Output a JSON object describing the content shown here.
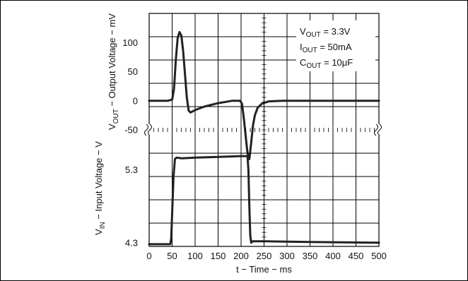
{
  "chart_data": {
    "type": "line",
    "xlabel": "t − Time − ms",
    "x_ticks": [
      0,
      50,
      100,
      150,
      200,
      250,
      300,
      350,
      400,
      450,
      500
    ],
    "xlim": [
      0,
      500
    ],
    "grid": true,
    "panels": [
      {
        "id": "vout",
        "ylabel_main": "V",
        "ylabel_sub": "OUT",
        "ylabel_rest": " − Output Voltage − mV",
        "y_ticks": [
          100,
          50,
          0,
          -50
        ],
        "ylim": [
          -50,
          150
        ],
        "series": {
          "x": [
            0,
            40,
            50,
            54,
            58,
            62,
            66,
            70,
            74,
            78,
            82,
            86,
            90,
            100,
            120,
            150,
            180,
            198,
            202,
            206,
            210,
            214,
            218,
            222,
            226,
            230,
            236,
            245,
            260,
            290,
            350,
            420,
            500
          ],
          "y": [
            0,
            0,
            2,
            20,
            70,
            108,
            118,
            112,
            85,
            45,
            5,
            -17,
            -20,
            -16,
            -10,
            -4,
            0,
            0,
            -5,
            -30,
            -60,
            -90,
            -100,
            -72,
            -42,
            -25,
            -12,
            -5,
            -1,
            0,
            0,
            0,
            0
          ]
        }
      },
      {
        "id": "vin",
        "ylabel_main": "V",
        "ylabel_sub": "IN",
        "ylabel_rest": " − Input Voltage − V",
        "y_ticks": [
          5.3,
          4.3
        ],
        "ylim": [
          4.25,
          5.85
        ],
        "series": {
          "x": [
            0,
            46,
            48,
            50,
            53,
            56,
            60,
            70,
            100,
            150,
            200,
            214,
            216,
            218,
            220,
            222,
            225,
            260,
            350,
            500
          ],
          "y": [
            4.28,
            4.28,
            4.36,
            4.7,
            5.2,
            5.45,
            5.47,
            5.46,
            5.47,
            5.48,
            5.49,
            5.49,
            5.3,
            4.8,
            4.4,
            4.3,
            4.32,
            4.32,
            4.31,
            4.3
          ]
        }
      }
    ],
    "annotations": [
      {
        "main": "V",
        "sub": "OUT",
        "rest": " = 3.3V"
      },
      {
        "main": "I",
        "sub": "OUT",
        "rest": " = 50mA"
      },
      {
        "main": "C",
        "sub": "OUT",
        "rest": " = 10μF"
      }
    ]
  }
}
